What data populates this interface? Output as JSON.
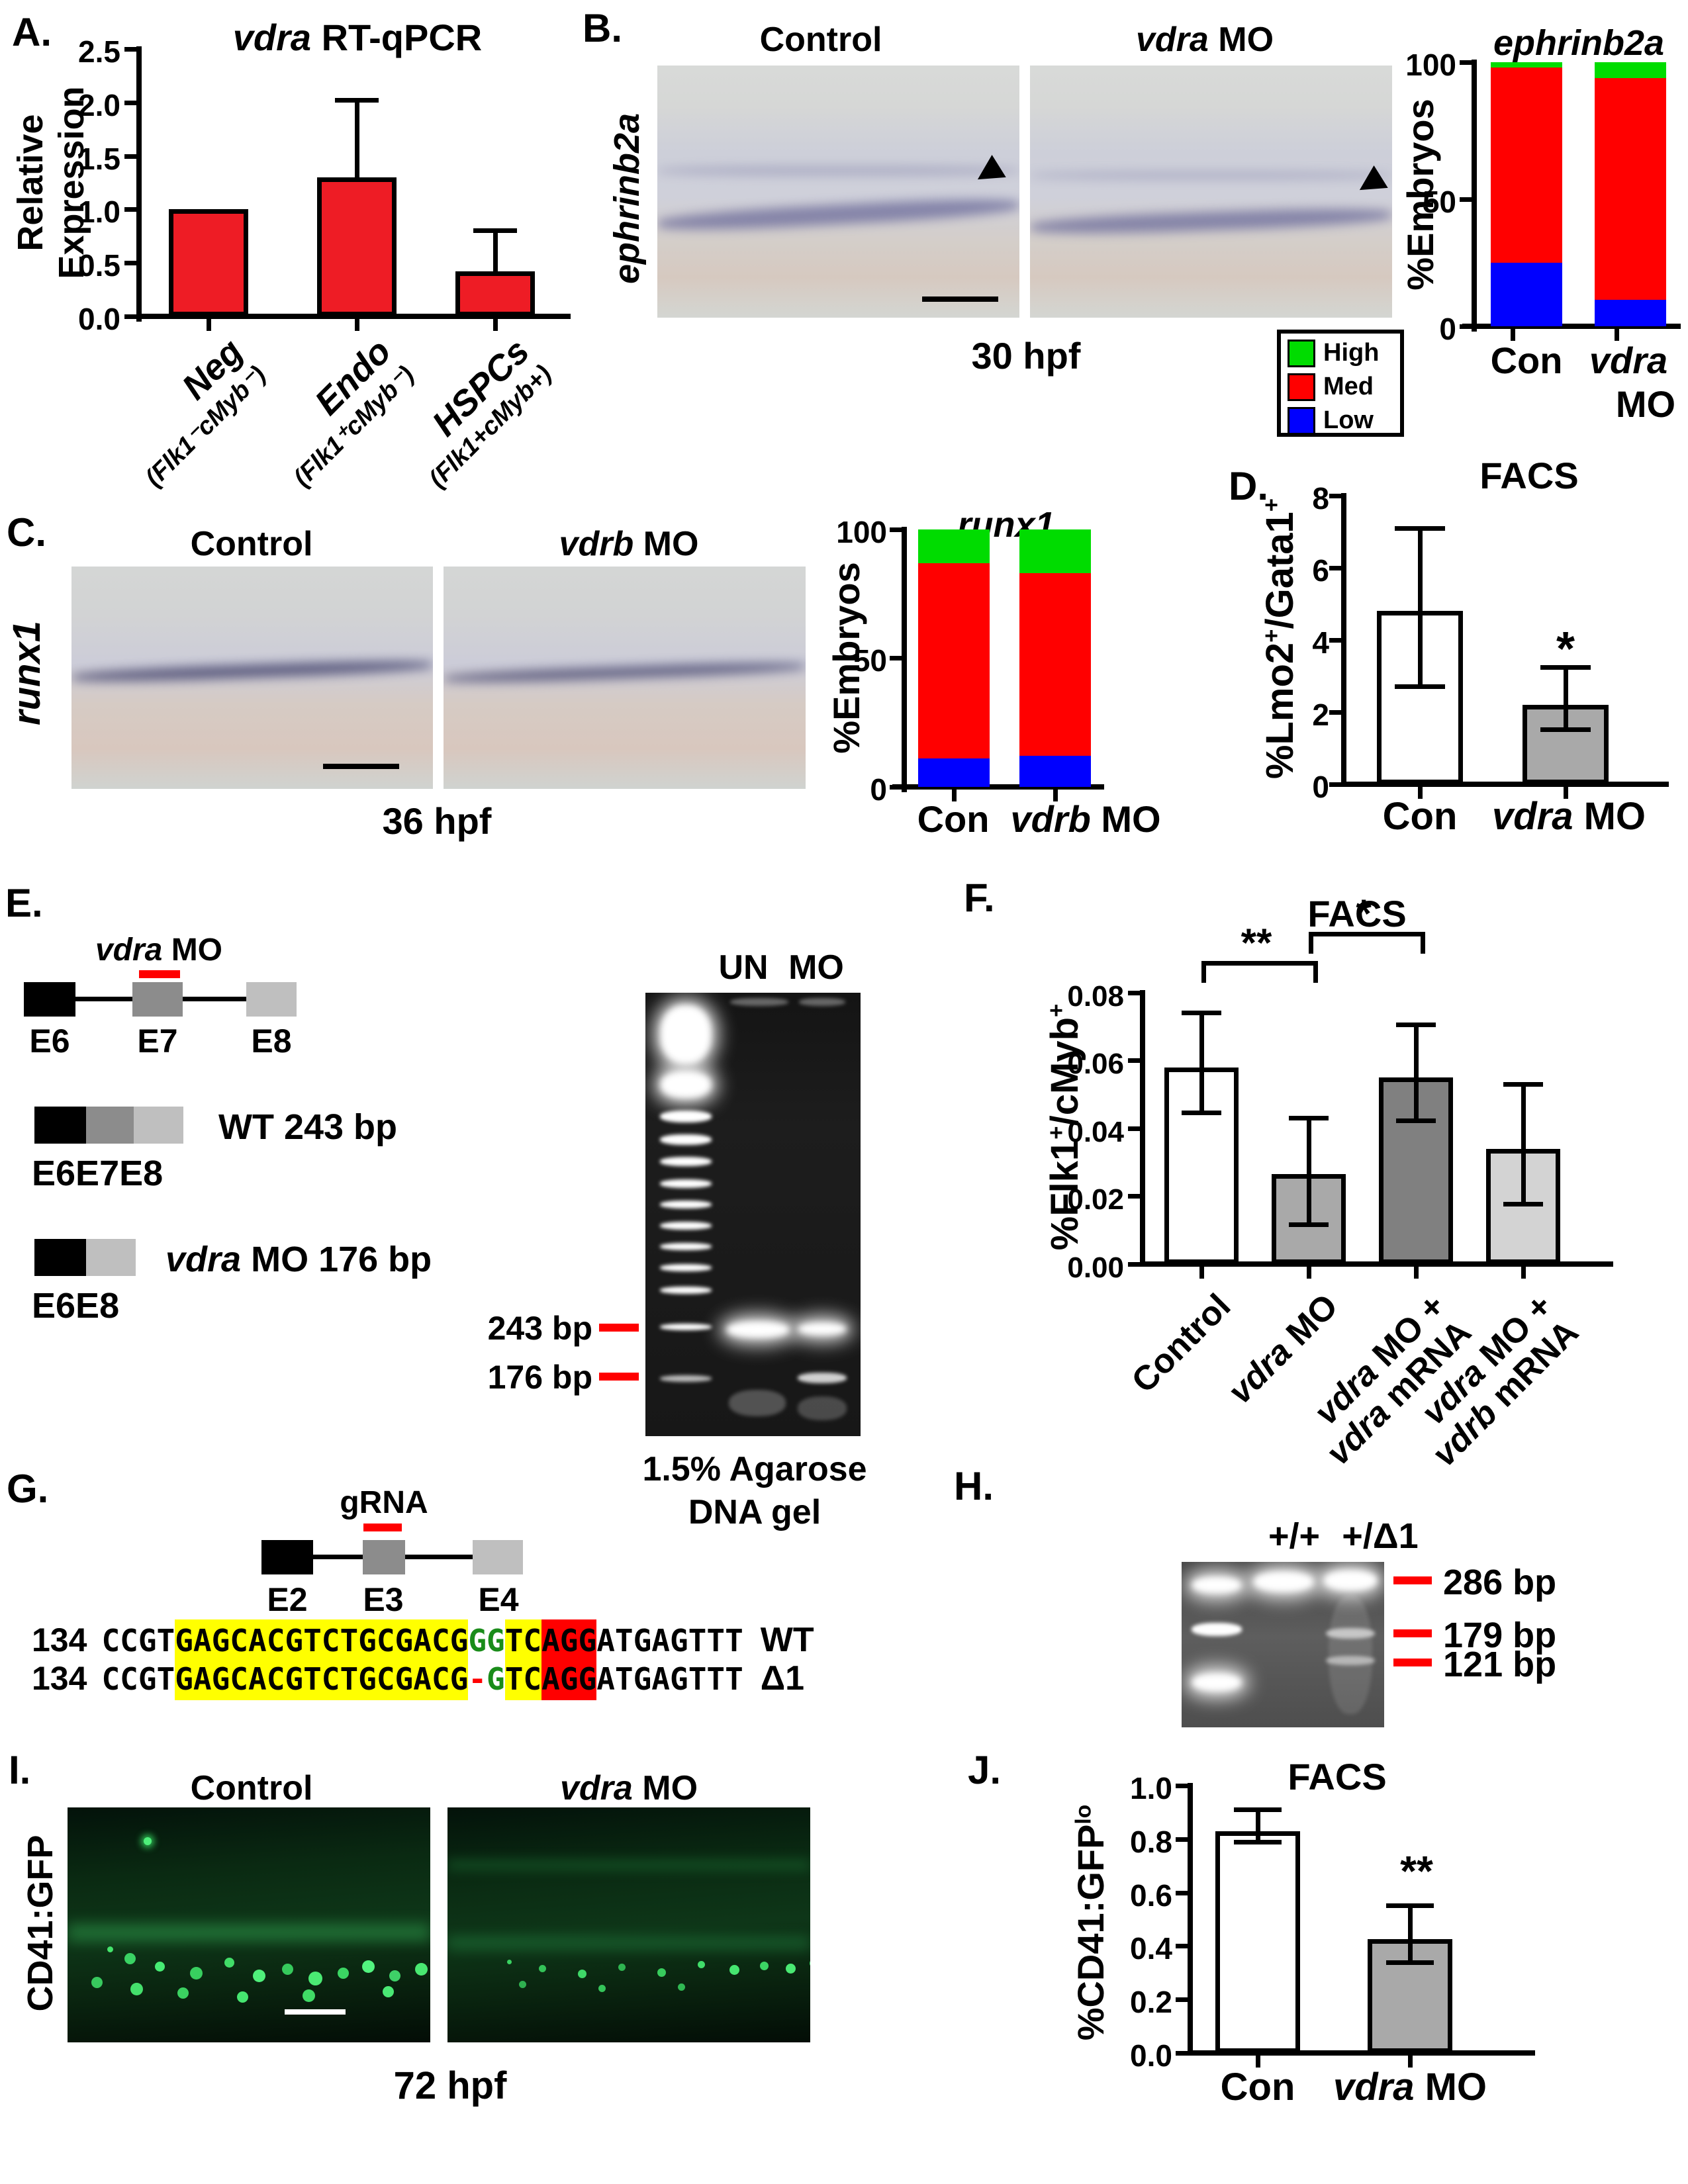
{
  "colors": {
    "bar_red": "#ee1c25",
    "high_green": "#00dc00",
    "med_red": "#ff0000",
    "low_blue": "#0000ff",
    "gray_bar": "#a9a9a9",
    "dark_gray_bar": "#808080",
    "light_gray_bar": "#d3d3d3",
    "exon_black": "#000000",
    "exon_dark": "#8c8c8c",
    "exon_light": "#bfbfbf",
    "marker_red": "#ff0000",
    "seq_yellow": "#ffff00",
    "seq_green": "#1a8c1a",
    "seq_red": "#ff0000"
  },
  "chart_data": [
    {
      "id": "A",
      "type": "bar",
      "title": "vdra RT-qPCR",
      "title_italic": "vdra",
      "title_rest": " RT-qPCR",
      "ylabel": "Relative Expression",
      "ylabel_line1": "Relative",
      "ylabel_line2": "Expression",
      "ylim": [
        0,
        2.5
      ],
      "yticks": [
        "2.5",
        "2.0",
        "1.5",
        "1.0",
        "0.5",
        "0.0"
      ],
      "categories": [
        "Neg (Flk1⁻cMyb⁻)",
        "Endo (Flk1⁺cMyb⁻)",
        "HSPCs (Flk1+cMyb+)"
      ],
      "cat_display": [
        {
          "main": "Neg",
          "sub": "(Flk1⁻cMyb⁻)"
        },
        {
          "main": "Endo",
          "sub": "(Flk1⁺cMyb⁻)"
        },
        {
          "main": "HSPCs",
          "sub": "(Flk1+cMyb+)"
        }
      ],
      "values": [
        1.0,
        1.3,
        0.42
      ],
      "errors_upper": [
        null,
        2.0,
        0.78
      ],
      "bar_color": "#ee1c25"
    },
    {
      "id": "B",
      "type": "stacked-bar",
      "title": "ephrinb2a",
      "ylabel": "%Embryos",
      "ylim": [
        0,
        100
      ],
      "yticks": [
        "100",
        "50",
        "0"
      ],
      "categories": [
        "Con",
        "vdra MO"
      ],
      "series": [
        {
          "name": "High",
          "color": "#00dc00",
          "values": [
            2,
            6
          ]
        },
        {
          "name": "Med",
          "color": "#ff0000",
          "values": [
            74,
            84
          ]
        },
        {
          "name": "Low",
          "color": "#0000ff",
          "values": [
            24,
            10
          ]
        }
      ],
      "legend": [
        "High",
        "Med",
        "Low"
      ]
    },
    {
      "id": "C",
      "type": "stacked-bar",
      "title": "runx1",
      "ylabel": "%Embryos",
      "ylim": [
        0,
        100
      ],
      "yticks": [
        "100",
        "50",
        "0"
      ],
      "categories": [
        "Con",
        "vdrb MO"
      ],
      "series": [
        {
          "name": "High",
          "color": "#00dc00",
          "values": [
            13,
            17
          ]
        },
        {
          "name": "Med",
          "color": "#ff0000",
          "values": [
            76,
            71
          ]
        },
        {
          "name": "Low",
          "color": "#0000ff",
          "values": [
            11,
            12
          ]
        }
      ]
    },
    {
      "id": "D",
      "type": "bar",
      "title": "FACS",
      "ylabel": "%Lmo2+/Gata1+",
      "ylim": [
        0,
        8
      ],
      "yticks": [
        "8",
        "6",
        "4",
        "2",
        "0"
      ],
      "categories": [
        "Con",
        "vdra MO"
      ],
      "values": [
        4.8,
        2.2
      ],
      "errors_low": [
        2.65,
        1.45
      ],
      "errors_high": [
        6.9,
        3.05
      ],
      "bar_colors": [
        "#ffffff",
        "#a9a9a9"
      ],
      "significance": [
        "",
        "*"
      ]
    },
    {
      "id": "F",
      "type": "bar",
      "title": "FACS",
      "ylabel": "%Flk1+/cMyb+",
      "ylim": [
        0,
        0.08
      ],
      "yticks": [
        "0.08",
        "0.06",
        "0.04",
        "0.02",
        "0.00"
      ],
      "categories": [
        "Control",
        "vdra MO",
        "vdra MO + vdra mRNA",
        "vdra MO + vdrb mRNA"
      ],
      "values": [
        0.058,
        0.0265,
        0.055,
        0.034
      ],
      "errors_low": [
        0.044,
        0.011,
        0.0415,
        0.017
      ],
      "errors_high": [
        0.072,
        0.041,
        0.0685,
        0.051
      ],
      "bar_colors": [
        "#ffffff",
        "#a9a9a9",
        "#808080",
        "#d3d3d3"
      ],
      "sig_brackets": [
        {
          "from": "Control",
          "to": "vdra MO",
          "label": "**"
        },
        {
          "from": "vdra MO",
          "to": "vdra MO + vdra mRNA",
          "label": "*"
        }
      ]
    },
    {
      "id": "J",
      "type": "bar",
      "title": "FACS",
      "ylabel": "%CD41:GFPlo",
      "ylabel_main": "%CD41:GFP",
      "ylabel_sup": "lo",
      "ylim": [
        0,
        1.0
      ],
      "yticks": [
        "1.0",
        "0.8",
        "0.6",
        "0.4",
        "0.2",
        "0.0"
      ],
      "categories": [
        "Con",
        "vdra MO"
      ],
      "values": [
        0.83,
        0.425
      ],
      "errors_low": [
        0.78,
        0.33
      ],
      "errors_high": [
        0.885,
        0.525
      ],
      "bar_colors": [
        "#ffffff",
        "#a9a9a9"
      ],
      "significance": [
        "",
        "**"
      ]
    }
  ],
  "panels": {
    "A": {
      "label": "A."
    },
    "B": {
      "label": "B.",
      "img1_title": "Control",
      "img2_title_i": "vdra",
      "img2_title_r": " MO",
      "side_label": "ephrinb2a",
      "timepoint": "30 hpf",
      "legend_high": "High",
      "legend_med": "Med",
      "legend_low": "Low",
      "xlab1": "Con",
      "xlab2_i": "vdra",
      "xlab2_r": "MO"
    },
    "C": {
      "label": "C.",
      "img1_title": "Control",
      "img2_title_i": "vdrb",
      "img2_title_r": " MO",
      "side_label": "runx1",
      "timepoint": "36 hpf",
      "xlab1": "Con",
      "xlab2_i": "vdrb",
      "xlab2_r": " MO"
    },
    "D": {
      "label": "D.",
      "title": "FACS",
      "ylabel_p1": "%Lmo2",
      "ylabel_s1": "+",
      "ylabel_p2": "/Gata1",
      "ylabel_s2": "+",
      "xlab1": "Con",
      "xlab2_i": "vdra",
      "xlab2_r": " MO",
      "sig": "*"
    },
    "E": {
      "label": "E.",
      "mo_label_i": "vdra",
      "mo_label_r": " MO",
      "exon1": "E6",
      "exon2": "E7",
      "exon3": "E8",
      "wt_label_pre": "WT 243 bp",
      "wt_exons": "E6E7E8",
      "mo_product_i": "vdra",
      "mo_product_r": " MO 176 bp",
      "mo_exons": "E6E8",
      "gel_lane1": "UN",
      "gel_lane2": "MO",
      "marker1": "243 bp",
      "marker2": "176 bp",
      "caption1": "1.5% Agarose",
      "caption2": "DNA gel"
    },
    "F": {
      "label": "F.",
      "title": "FACS",
      "ylabel_p1": "%Flk1",
      "ylabel_s1": "+",
      "ylabel_p2": "/cMyb",
      "ylabel_s2": "+",
      "sig1": "**",
      "sig2": "*",
      "xlabels": [
        {
          "l1r": "Control"
        },
        {
          "l1i": "vdra",
          "l1r": " MO"
        },
        {
          "l1i": "vdra",
          "l1r": " MO +",
          "l2i": "vdra",
          "l2r": " mRNA"
        },
        {
          "l1i": "vdra",
          "l1r": " MO +",
          "l2i": "vdrb",
          "l2r": " mRNA"
        }
      ]
    },
    "G": {
      "label": "G.",
      "grna": "gRNA",
      "exon1": "E2",
      "exon2": "E3",
      "exon3": "E4",
      "wt_num": "134",
      "d1_num": "134",
      "seq_pre": "CCGT",
      "seq_yellow1": "GAGCACGTCTGCGACG",
      "wt_green": "GG",
      "d1_dash": "-",
      "d1_green": "G",
      "seq_yellow2": "TC",
      "seq_red": "AGG",
      "seq_post": "ATGAGTTT",
      "wt_label": "WT",
      "d1_label": "Δ1"
    },
    "H": {
      "label": "H.",
      "lane1": "+/+",
      "lane2": "+/Δ1",
      "marker1": "286 bp",
      "marker2": "179 bp",
      "marker3": "121 bp"
    },
    "I": {
      "label": "I.",
      "img1_title": "Control",
      "img2_title_i": "vdra",
      "img2_title_r": " MO",
      "side_label": "CD41:GFP",
      "timepoint": "72 hpf"
    },
    "J": {
      "label": "J.",
      "title": "FACS",
      "xlab1": "Con",
      "xlab2_i": "vdra",
      "xlab2_r": " MO",
      "sig": "**"
    }
  }
}
